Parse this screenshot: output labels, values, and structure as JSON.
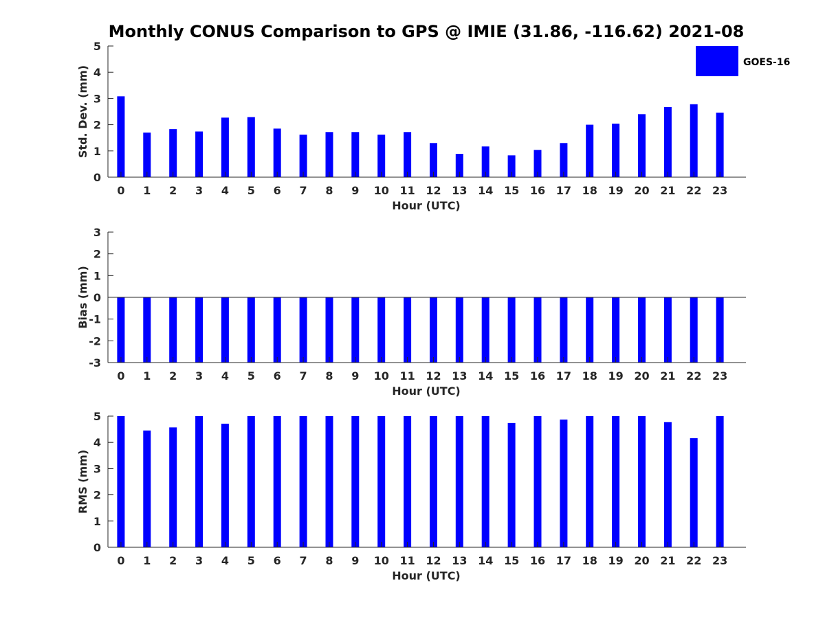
{
  "figure": {
    "title": "Monthly CONUS Comparison to GPS @ IMIE (31.86, -116.62) 2021-08"
  },
  "legend": {
    "label": "GOES-16",
    "color": "#0000ff"
  },
  "chart_data": [
    {
      "type": "bar",
      "id": "std",
      "categories": [
        "0",
        "1",
        "2",
        "3",
        "4",
        "5",
        "6",
        "7",
        "8",
        "9",
        "10",
        "11",
        "12",
        "13",
        "14",
        "15",
        "16",
        "17",
        "18",
        "19",
        "20",
        "21",
        "22",
        "23"
      ],
      "series": [
        {
          "name": "GOES-16",
          "color": "#0000ff",
          "values": [
            3.08,
            1.7,
            1.83,
            1.74,
            2.27,
            2.29,
            1.85,
            1.62,
            1.72,
            1.72,
            1.62,
            1.72,
            1.3,
            0.89,
            1.17,
            0.83,
            1.04,
            1.3,
            2.0,
            2.04,
            2.4,
            2.67,
            2.78,
            2.46
          ]
        }
      ],
      "xlabel": "Hour (UTC)",
      "ylabel": "Std. Dev. (mm)",
      "ylim": [
        0,
        5
      ],
      "yticks": [
        "0",
        "1",
        "2",
        "3",
        "4",
        "5"
      ],
      "grid": false,
      "legend_position": "top-right"
    },
    {
      "type": "bar",
      "id": "bias",
      "categories": [
        "0",
        "1",
        "2",
        "3",
        "4",
        "5",
        "6",
        "7",
        "8",
        "9",
        "10",
        "11",
        "12",
        "13",
        "14",
        "15",
        "16",
        "17",
        "18",
        "19",
        "20",
        "21",
        "22",
        "23"
      ],
      "series": [
        {
          "name": "GOES-16",
          "color": "#0000ff",
          "values": [
            -3,
            -3,
            -3,
            -3,
            -3,
            -3,
            -3,
            -3,
            -3,
            -3,
            -3,
            -3,
            -3,
            -3,
            -3,
            -3,
            -3,
            -3,
            -3,
            -3,
            -3,
            -3,
            -3,
            -3
          ]
        }
      ],
      "xlabel": "Hour (UTC)",
      "ylabel": "Bias (mm)",
      "ylim": [
        -3,
        3
      ],
      "yticks": [
        "-3",
        "-2",
        "-1",
        "0",
        "1",
        "2",
        "3"
      ],
      "zero_line": true,
      "grid": false
    },
    {
      "type": "bar",
      "id": "rms",
      "categories": [
        "0",
        "1",
        "2",
        "3",
        "4",
        "5",
        "6",
        "7",
        "8",
        "9",
        "10",
        "11",
        "12",
        "13",
        "14",
        "15",
        "16",
        "17",
        "18",
        "19",
        "20",
        "21",
        "22",
        "23"
      ],
      "series": [
        {
          "name": "GOES-16",
          "color": "#0000ff",
          "values": [
            5,
            4.45,
            4.57,
            5,
            4.71,
            5,
            5,
            5,
            5,
            5,
            5,
            5,
            5,
            5,
            5,
            4.74,
            5,
            4.87,
            5,
            5,
            5,
            4.77,
            4.16,
            5
          ]
        }
      ],
      "xlabel": "Hour (UTC)",
      "ylabel": "RMS (mm)",
      "ylim": [
        0,
        5
      ],
      "yticks": [
        "0",
        "1",
        "2",
        "3",
        "4",
        "5"
      ],
      "grid": false
    }
  ]
}
